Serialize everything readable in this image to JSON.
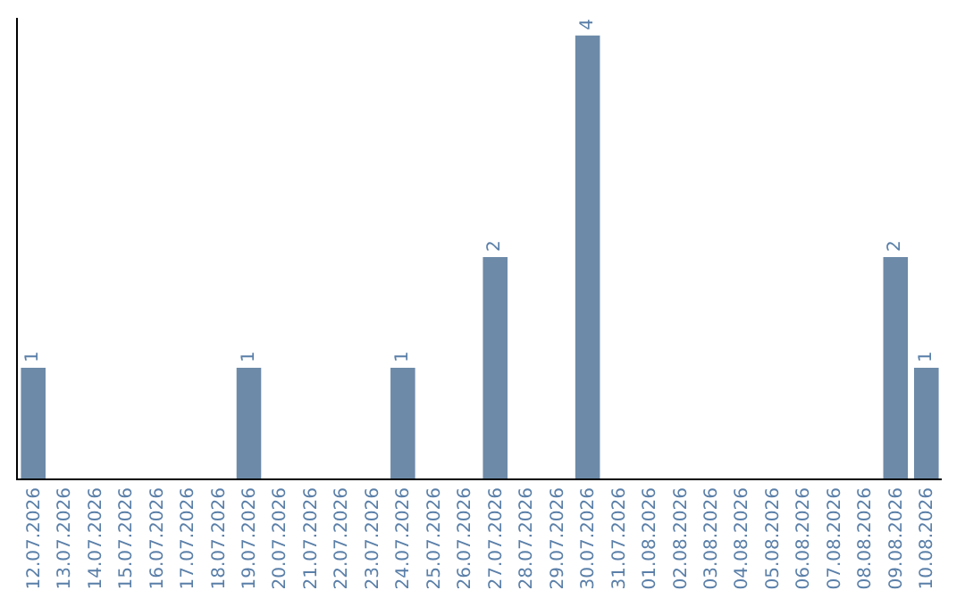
{
  "chart_data": {
    "type": "bar",
    "categories": [
      "12.07.2026",
      "13.07.2026",
      "14.07.2026",
      "15.07.2026",
      "16.07.2026",
      "17.07.2026",
      "18.07.2026",
      "19.07.2026",
      "20.07.2026",
      "21.07.2026",
      "22.07.2026",
      "23.07.2026",
      "24.07.2026",
      "25.07.2026",
      "26.07.2026",
      "27.07.2026",
      "28.07.2026",
      "29.07.2026",
      "30.07.2026",
      "31.07.2026",
      "01.08.2026",
      "02.08.2026",
      "03.08.2026",
      "04.08.2026",
      "05.08.2026",
      "06.08.2026",
      "07.08.2026",
      "08.08.2026",
      "09.08.2026",
      "10.08.2026"
    ],
    "values": [
      1,
      0,
      0,
      0,
      0,
      0,
      0,
      1,
      0,
      0,
      0,
      0,
      1,
      0,
      0,
      2,
      0,
      0,
      4,
      0,
      0,
      0,
      0,
      0,
      0,
      0,
      0,
      0,
      2,
      1
    ],
    "value_labels": [
      "1",
      null,
      null,
      null,
      null,
      null,
      null,
      "1",
      null,
      null,
      null,
      null,
      "1",
      null,
      null,
      "2",
      null,
      null,
      "4",
      null,
      null,
      null,
      null,
      null,
      null,
      null,
      null,
      null,
      "2",
      "1"
    ],
    "color": "#6d8aa8",
    "legend": false
  }
}
